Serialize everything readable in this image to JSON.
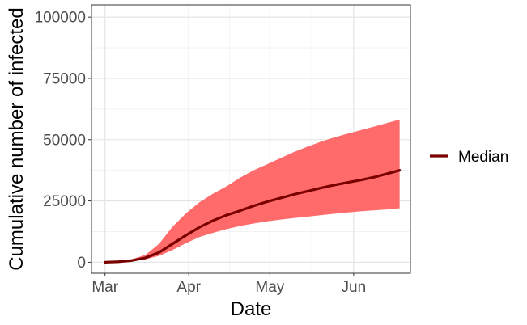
{
  "chart_data": {
    "type": "area",
    "xlabel": "Date",
    "ylabel": "Cumulative number of infected",
    "x_ticks": [
      "Mar",
      "Apr",
      "May",
      "Jun"
    ],
    "x_tick_dates": [
      "2020-03-01",
      "2020-04-01",
      "2020-05-01",
      "2020-06-01"
    ],
    "x_range": [
      "2020-02-25",
      "2020-06-22"
    ],
    "y_ticks": [
      0,
      25000,
      50000,
      75000,
      100000
    ],
    "y_tick_labels": [
      "0",
      "25000",
      "50000",
      "75000",
      "100000"
    ],
    "ylim": [
      -4500,
      105000
    ],
    "grid": true,
    "legend": {
      "position": "right",
      "entries": [
        "Median"
      ]
    },
    "dates": [
      "2020-03-01",
      "2020-03-06",
      "2020-03-11",
      "2020-03-16",
      "2020-03-21",
      "2020-03-26",
      "2020-03-31",
      "2020-04-05",
      "2020-04-10",
      "2020-04-15",
      "2020-04-20",
      "2020-04-25",
      "2020-04-30",
      "2020-05-05",
      "2020-05-10",
      "2020-05-15",
      "2020-05-20",
      "2020-05-25",
      "2020-05-30",
      "2020-06-04",
      "2020-06-09",
      "2020-06-14",
      "2020-06-18"
    ],
    "series": [
      {
        "name": "Median",
        "color": "#7a0000",
        "values": [
          0,
          200,
          700,
          1800,
          4000,
          7500,
          11000,
          14300,
          17000,
          19200,
          21000,
          23000,
          24700,
          26200,
          27700,
          29000,
          30300,
          31500,
          32600,
          33600,
          34800,
          36300,
          37500
        ]
      }
    ],
    "ribbon": {
      "color": "#ff6b6b",
      "lower": [
        0,
        100,
        400,
        1200,
        2600,
        5000,
        7800,
        10300,
        12000,
        13500,
        14800,
        15800,
        16700,
        17400,
        18000,
        18600,
        19200,
        19800,
        20300,
        20800,
        21200,
        21600,
        22000
      ],
      "upper": [
        0,
        300,
        1200,
        3000,
        7500,
        14500,
        20000,
        24500,
        28000,
        31000,
        34500,
        37500,
        40000,
        42500,
        45000,
        47200,
        49200,
        51000,
        52500,
        54000,
        55500,
        57000,
        58200
      ]
    }
  }
}
